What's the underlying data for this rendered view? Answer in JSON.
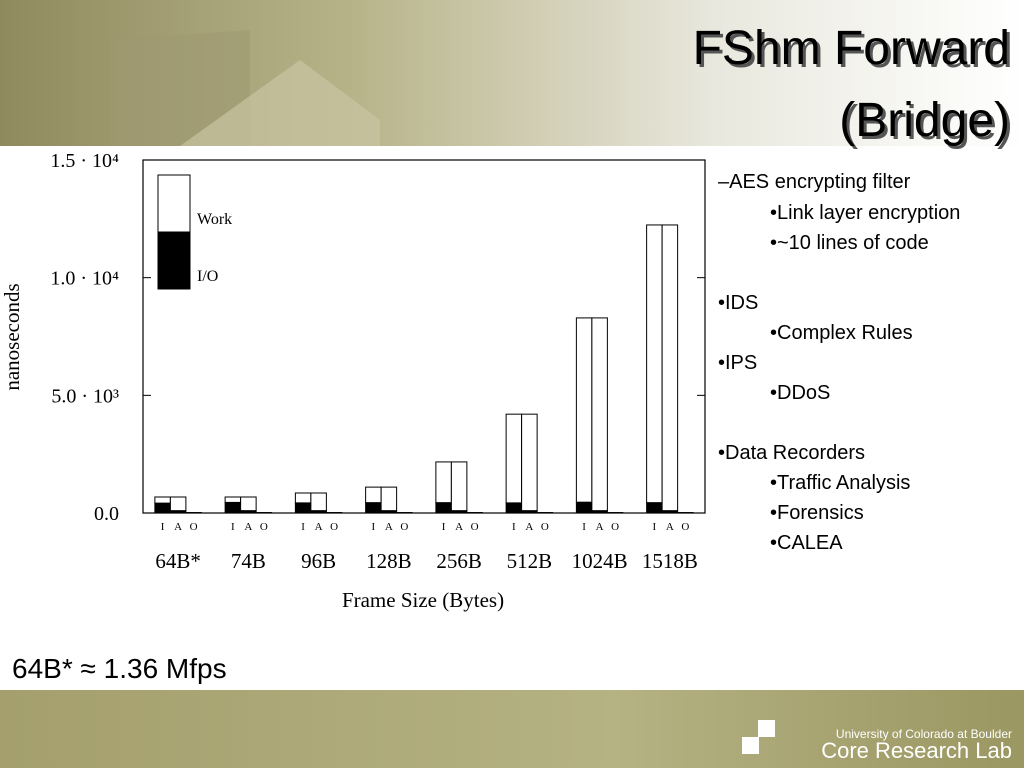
{
  "header": {
    "title_lines": [
      "FShm Forward",
      "(Bridge)"
    ]
  },
  "chart_data": {
    "type": "grouped-stacked-bar",
    "y_label": "nanoseconds",
    "x_label": "Frame Size (Bytes)",
    "categories": [
      "64B*",
      "74B",
      "96B",
      "128B",
      "256B",
      "512B",
      "1024B",
      "1518B"
    ],
    "subcategories": [
      "I",
      "A",
      "O"
    ],
    "series": [
      {
        "name": "I/O",
        "color": "#000000",
        "values": [
          [
            420,
            100,
            20
          ],
          [
            450,
            100,
            20
          ],
          [
            430,
            100,
            20
          ],
          [
            440,
            100,
            20
          ],
          [
            440,
            100,
            20
          ],
          [
            430,
            100,
            20
          ],
          [
            460,
            100,
            20
          ],
          [
            440,
            100,
            20
          ]
        ]
      },
      {
        "name": "Work",
        "color": "#ffffff",
        "values": [
          [
            260,
            580,
            0
          ],
          [
            230,
            580,
            0
          ],
          [
            420,
            750,
            0
          ],
          [
            660,
            1000,
            0
          ],
          [
            1730,
            2070,
            0
          ],
          [
            3770,
            4100,
            0
          ],
          [
            7830,
            8190,
            0
          ],
          [
            11800,
            12140,
            0
          ]
        ]
      }
    ],
    "ylim": [
      0,
      15000
    ],
    "yticks": [
      {
        "value": 0,
        "label": "0.0"
      },
      {
        "value": 5000,
        "label": "5.0 · 10³"
      },
      {
        "value": 10000,
        "label": "1.0 · 10⁴"
      },
      {
        "value": 15000,
        "label": "1.5 · 10⁴"
      }
    ]
  },
  "bullets": {
    "items": [
      "–AES encrypting filter",
      "•Link layer encryption",
      "•~10 lines of code",
      "•IDS",
      "•Complex Rules",
      "•IPS",
      "•DDoS",
      "•Data Recorders",
      "•Traffic Analysis",
      "•Forensics",
      "•CALEA"
    ]
  },
  "note": "64B* ≈ 1.36 Mfps",
  "footer": {
    "org": "University of Colorado at Boulder",
    "lab": "Core Research Lab"
  }
}
